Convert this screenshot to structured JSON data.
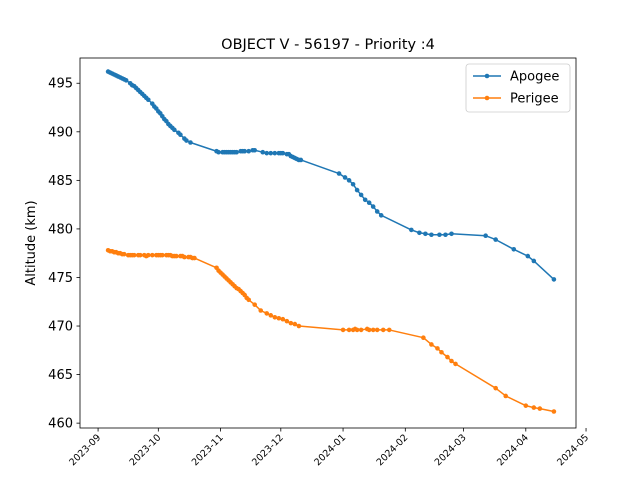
{
  "chart_data": {
    "type": "line",
    "title": "OBJECT V - 56197 - Priority :4",
    "xlabel": "",
    "ylabel": "Altitude (km)",
    "x_axis": {
      "type": "date",
      "range": [
        "2023-08-23",
        "2024-04-26"
      ],
      "ticks": [
        "2023-09-01",
        "2023-10-01",
        "2023-11-01",
        "2023-12-01",
        "2024-01-01",
        "2024-02-01",
        "2024-03-01",
        "2024-04-01",
        "2024-05-01"
      ],
      "tick_labels": [
        "2023-09",
        "2023-10",
        "2023-11",
        "2023-12",
        "2024-01",
        "2024-02",
        "2024-03",
        "2024-04",
        "2024-05"
      ]
    },
    "y_axis": {
      "range": [
        459.5,
        497.6
      ],
      "ticks": [
        460,
        465,
        470,
        475,
        480,
        485,
        490,
        495
      ],
      "tick_labels": [
        "460",
        "465",
        "470",
        "475",
        "480",
        "485",
        "490",
        "495"
      ]
    },
    "grid": false,
    "legend": "top-right",
    "series": [
      {
        "name": "Apogee",
        "color": "#1f77b4",
        "points": [
          [
            "2023-09-06",
            496.2
          ],
          [
            "2023-09-07",
            496.1
          ],
          [
            "2023-09-08",
            496.0
          ],
          [
            "2023-09-09",
            495.9
          ],
          [
            "2023-09-10",
            495.8
          ],
          [
            "2023-09-11",
            495.7
          ],
          [
            "2023-09-12",
            495.6
          ],
          [
            "2023-09-13",
            495.5
          ],
          [
            "2023-09-14",
            495.4
          ],
          [
            "2023-09-15",
            495.3
          ],
          [
            "2023-09-17",
            495.0
          ],
          [
            "2023-09-18",
            494.8
          ],
          [
            "2023-09-19",
            494.7
          ],
          [
            "2023-09-20",
            494.5
          ],
          [
            "2023-09-21",
            494.3
          ],
          [
            "2023-09-22",
            494.1
          ],
          [
            "2023-09-23",
            493.9
          ],
          [
            "2023-09-24",
            493.7
          ],
          [
            "2023-09-25",
            493.5
          ],
          [
            "2023-09-26",
            493.3
          ],
          [
            "2023-09-28",
            492.9
          ],
          [
            "2023-09-29",
            492.6
          ],
          [
            "2023-09-30",
            492.4
          ],
          [
            "2023-10-01",
            492.1
          ],
          [
            "2023-10-02",
            491.9
          ],
          [
            "2023-10-03",
            491.6
          ],
          [
            "2023-10-04",
            491.3
          ],
          [
            "2023-10-05",
            491.1
          ],
          [
            "2023-10-06",
            490.8
          ],
          [
            "2023-10-07",
            490.6
          ],
          [
            "2023-10-08",
            490.4
          ],
          [
            "2023-10-09",
            490.2
          ],
          [
            "2023-10-11",
            489.9
          ],
          [
            "2023-10-12",
            489.7
          ],
          [
            "2023-10-14",
            489.3
          ],
          [
            "2023-10-15",
            489.1
          ],
          [
            "2023-10-17",
            488.9
          ],
          [
            "2023-10-30",
            488.0
          ],
          [
            "2023-10-31",
            487.9
          ],
          [
            "2023-11-02",
            487.9
          ],
          [
            "2023-11-03",
            487.9
          ],
          [
            "2023-11-04",
            487.9
          ],
          [
            "2023-11-05",
            487.9
          ],
          [
            "2023-11-06",
            487.9
          ],
          [
            "2023-11-07",
            487.9
          ],
          [
            "2023-11-08",
            487.9
          ],
          [
            "2023-11-09",
            487.9
          ],
          [
            "2023-11-11",
            488.0
          ],
          [
            "2023-11-12",
            488.0
          ],
          [
            "2023-11-13",
            488.0
          ],
          [
            "2023-11-15",
            488.0
          ],
          [
            "2023-11-17",
            488.1
          ],
          [
            "2023-11-18",
            488.1
          ],
          [
            "2023-11-22",
            487.9
          ],
          [
            "2023-11-24",
            487.8
          ],
          [
            "2023-11-26",
            487.8
          ],
          [
            "2023-11-28",
            487.8
          ],
          [
            "2023-11-30",
            487.8
          ],
          [
            "2023-12-01",
            487.8
          ],
          [
            "2023-12-02",
            487.8
          ],
          [
            "2023-12-04",
            487.7
          ],
          [
            "2023-12-05",
            487.7
          ],
          [
            "2023-12-06",
            487.5
          ],
          [
            "2023-12-07",
            487.4
          ],
          [
            "2023-12-08",
            487.3
          ],
          [
            "2023-12-09",
            487.2
          ],
          [
            "2023-12-10",
            487.1
          ],
          [
            "2023-12-11",
            487.1
          ],
          [
            "2023-12-30",
            485.7
          ],
          [
            "2024-01-02",
            485.3
          ],
          [
            "2024-01-04",
            485.0
          ],
          [
            "2024-01-06",
            484.6
          ],
          [
            "2024-01-08",
            484.0
          ],
          [
            "2024-01-10",
            483.5
          ],
          [
            "2024-01-12",
            483.0
          ],
          [
            "2024-01-14",
            482.7
          ],
          [
            "2024-01-16",
            482.3
          ],
          [
            "2024-01-18",
            481.8
          ],
          [
            "2024-01-20",
            481.4
          ],
          [
            "2024-02-04",
            479.9
          ],
          [
            "2024-02-08",
            479.6
          ],
          [
            "2024-02-11",
            479.5
          ],
          [
            "2024-02-14",
            479.4
          ],
          [
            "2024-02-18",
            479.4
          ],
          [
            "2024-02-21",
            479.4
          ],
          [
            "2024-02-24",
            479.5
          ],
          [
            "2024-03-12",
            479.3
          ],
          [
            "2024-03-17",
            478.9
          ],
          [
            "2024-03-26",
            477.9
          ],
          [
            "2024-04-02",
            477.2
          ],
          [
            "2024-04-05",
            476.7
          ],
          [
            "2024-04-15",
            474.8
          ]
        ]
      },
      {
        "name": "Perigee",
        "color": "#ff7f0e",
        "points": [
          [
            "2023-09-06",
            477.8
          ],
          [
            "2023-09-07",
            477.7
          ],
          [
            "2023-09-08",
            477.7
          ],
          [
            "2023-09-09",
            477.6
          ],
          [
            "2023-09-10",
            477.6
          ],
          [
            "2023-09-11",
            477.5
          ],
          [
            "2023-09-12",
            477.5
          ],
          [
            "2023-09-13",
            477.4
          ],
          [
            "2023-09-14",
            477.4
          ],
          [
            "2023-09-16",
            477.3
          ],
          [
            "2023-09-17",
            477.3
          ],
          [
            "2023-09-18",
            477.3
          ],
          [
            "2023-09-19",
            477.3
          ],
          [
            "2023-09-21",
            477.3
          ],
          [
            "2023-09-22",
            477.3
          ],
          [
            "2023-09-24",
            477.3
          ],
          [
            "2023-09-25",
            477.2
          ],
          [
            "2023-09-26",
            477.3
          ],
          [
            "2023-09-28",
            477.3
          ],
          [
            "2023-09-30",
            477.3
          ],
          [
            "2023-10-01",
            477.3
          ],
          [
            "2023-10-02",
            477.3
          ],
          [
            "2023-10-03",
            477.3
          ],
          [
            "2023-10-05",
            477.3
          ],
          [
            "2023-10-06",
            477.3
          ],
          [
            "2023-10-07",
            477.3
          ],
          [
            "2023-10-08",
            477.2
          ],
          [
            "2023-10-09",
            477.2
          ],
          [
            "2023-10-10",
            477.2
          ],
          [
            "2023-10-12",
            477.2
          ],
          [
            "2023-10-13",
            477.2
          ],
          [
            "2023-10-14",
            477.1
          ],
          [
            "2023-10-16",
            477.1
          ],
          [
            "2023-10-17",
            477.1
          ],
          [
            "2023-10-18",
            477.0
          ],
          [
            "2023-10-19",
            477.0
          ],
          [
            "2023-10-30",
            476.0
          ],
          [
            "2023-10-31",
            475.7
          ],
          [
            "2023-11-01",
            475.5
          ],
          [
            "2023-11-02",
            475.3
          ],
          [
            "2023-11-03",
            475.1
          ],
          [
            "2023-11-04",
            474.9
          ],
          [
            "2023-11-05",
            474.7
          ],
          [
            "2023-11-06",
            474.5
          ],
          [
            "2023-11-07",
            474.3
          ],
          [
            "2023-11-08",
            474.1
          ],
          [
            "2023-11-09",
            473.9
          ],
          [
            "2023-11-10",
            473.8
          ],
          [
            "2023-11-11",
            473.6
          ],
          [
            "2023-11-12",
            473.4
          ],
          [
            "2023-11-13",
            473.2
          ],
          [
            "2023-11-14",
            472.9
          ],
          [
            "2023-11-15",
            472.7
          ],
          [
            "2023-11-18",
            472.2
          ],
          [
            "2023-11-21",
            471.6
          ],
          [
            "2023-11-24",
            471.3
          ],
          [
            "2023-11-26",
            471.1
          ],
          [
            "2023-11-28",
            470.9
          ],
          [
            "2023-11-30",
            470.8
          ],
          [
            "2023-12-02",
            470.7
          ],
          [
            "2023-12-04",
            470.5
          ],
          [
            "2023-12-06",
            470.3
          ],
          [
            "2023-12-08",
            470.2
          ],
          [
            "2023-12-10",
            470.0
          ],
          [
            "2024-01-01",
            469.6
          ],
          [
            "2024-01-04",
            469.6
          ],
          [
            "2024-01-06",
            469.6
          ],
          [
            "2024-01-07",
            469.7
          ],
          [
            "2024-01-08",
            469.6
          ],
          [
            "2024-01-10",
            469.6
          ],
          [
            "2024-01-13",
            469.7
          ],
          [
            "2024-01-14",
            469.6
          ],
          [
            "2024-01-16",
            469.6
          ],
          [
            "2024-01-18",
            469.6
          ],
          [
            "2024-01-21",
            469.6
          ],
          [
            "2024-01-24",
            469.6
          ],
          [
            "2024-02-10",
            468.8
          ],
          [
            "2024-02-14",
            468.1
          ],
          [
            "2024-02-17",
            467.7
          ],
          [
            "2024-02-19",
            467.3
          ],
          [
            "2024-02-22",
            466.8
          ],
          [
            "2024-02-24",
            466.4
          ],
          [
            "2024-02-26",
            466.1
          ],
          [
            "2024-03-17",
            463.6
          ],
          [
            "2024-03-22",
            462.8
          ],
          [
            "2024-04-01",
            461.8
          ],
          [
            "2024-04-05",
            461.6
          ],
          [
            "2024-04-08",
            461.5
          ],
          [
            "2024-04-15",
            461.2
          ]
        ]
      }
    ]
  }
}
